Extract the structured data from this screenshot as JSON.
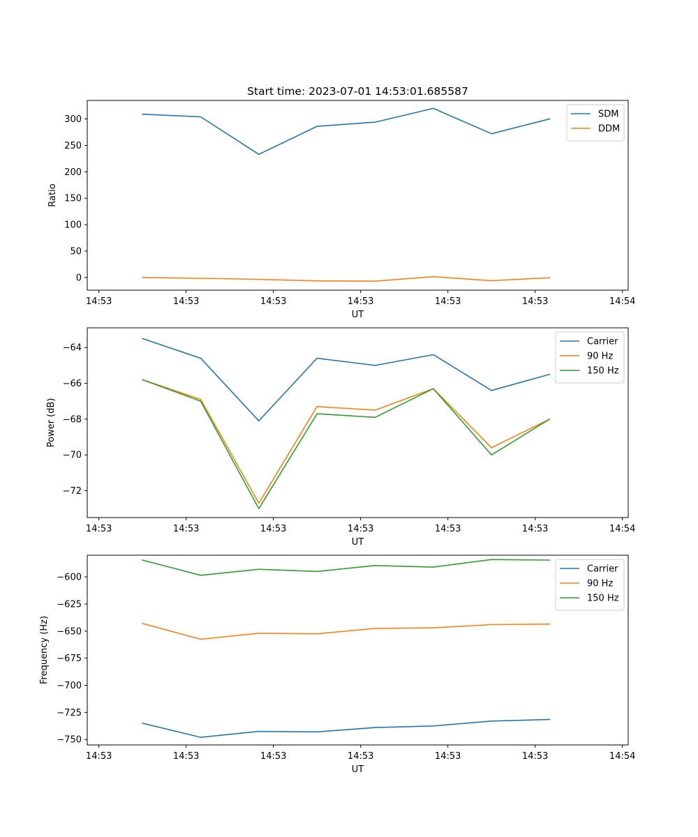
{
  "title": "Start time: 2023-07-01 14:53:01.685587",
  "colors": {
    "c0": "#1f77b4",
    "c1": "#ff7f0e",
    "c2": "#2ca02c"
  },
  "chart_data": [
    {
      "type": "line",
      "xlabel": "UT",
      "ylabel": "Ratio",
      "x_tick_labels": [
        "14:53",
        "14:53",
        "14:53",
        "14:53",
        "14:53",
        "14:53",
        "14:54"
      ],
      "xlim": [
        -0.2,
        9.1
      ],
      "x": [
        0.75,
        1.75,
        2.75,
        3.75,
        4.75,
        5.75,
        6.75,
        7.75
      ],
      "ylim": [
        -24,
        335
      ],
      "y_ticks": [
        0,
        50,
        100,
        150,
        200,
        250,
        300
      ],
      "y_tick_labels": [
        "0",
        "50",
        "100",
        "150",
        "200",
        "250",
        "300"
      ],
      "legend": "top-right",
      "series": [
        {
          "name": "SDM",
          "color": "#1f77b4",
          "values": [
            309,
            304,
            233,
            286,
            294,
            320,
            272,
            300
          ]
        },
        {
          "name": "DDM",
          "color": "#ff7f0e",
          "values": [
            0,
            -1.5,
            -3.5,
            -6.5,
            -7,
            1.5,
            -6,
            -0.5
          ]
        }
      ]
    },
    {
      "type": "line",
      "xlabel": "UT",
      "ylabel": "Power (dB)",
      "x_tick_labels": [
        "14:53",
        "14:53",
        "14:53",
        "14:53",
        "14:53",
        "14:53",
        "14:54"
      ],
      "xlim": [
        -0.2,
        9.1
      ],
      "x": [
        0.75,
        1.75,
        2.75,
        3.75,
        4.75,
        5.75,
        6.75,
        7.75
      ],
      "ylim": [
        -73.5,
        -62.9
      ],
      "y_ticks": [
        -72,
        -70,
        -68,
        -66,
        -64
      ],
      "y_tick_labels": [
        "−72",
        "−70",
        "−68",
        "−66",
        "−64"
      ],
      "legend": "top-right",
      "series": [
        {
          "name": "Carrier",
          "color": "#1f77b4",
          "values": [
            -63.5,
            -64.6,
            -68.1,
            -64.6,
            -65.0,
            -64.4,
            -66.4,
            -65.5
          ]
        },
        {
          "name": "90 Hz",
          "color": "#ff7f0e",
          "values": [
            -65.8,
            -66.9,
            -72.7,
            -67.3,
            -67.5,
            -66.3,
            -69.6,
            -68.0
          ]
        },
        {
          "name": "150 Hz",
          "color": "#2ca02c",
          "values": [
            -65.8,
            -67.0,
            -73.0,
            -67.7,
            -67.9,
            -66.3,
            -70.0,
            -68.0
          ]
        }
      ]
    },
    {
      "type": "line",
      "xlabel": "UT",
      "ylabel": "Frequency (Hz)",
      "x_tick_labels": [
        "14:53",
        "14:53",
        "14:53",
        "14:53",
        "14:53",
        "14:53",
        "14:54"
      ],
      "xlim": [
        -0.2,
        9.1
      ],
      "x": [
        0.75,
        1.75,
        2.75,
        3.75,
        4.75,
        5.75,
        6.75,
        7.75
      ],
      "ylim": [
        -755,
        -580
      ],
      "y_ticks": [
        -750,
        -725,
        -700,
        -675,
        -650,
        -625,
        -600
      ],
      "y_tick_labels": [
        "−750",
        "−725",
        "−700",
        "−675",
        "−650",
        "−625",
        "−600"
      ],
      "legend": "top-right",
      "series": [
        {
          "name": "Carrier",
          "color": "#1f77b4",
          "values": [
            -735,
            -748,
            -742.5,
            -743,
            -739,
            -737.5,
            -733,
            -731.5
          ]
        },
        {
          "name": "90 Hz",
          "color": "#ff7f0e",
          "values": [
            -643,
            -657.5,
            -652,
            -652.5,
            -647.5,
            -647,
            -644,
            -643.5
          ]
        },
        {
          "name": "150 Hz",
          "color": "#2ca02c",
          "values": [
            -584.5,
            -598.5,
            -593,
            -595,
            -589.5,
            -591,
            -584,
            -584.5
          ]
        }
      ]
    }
  ]
}
